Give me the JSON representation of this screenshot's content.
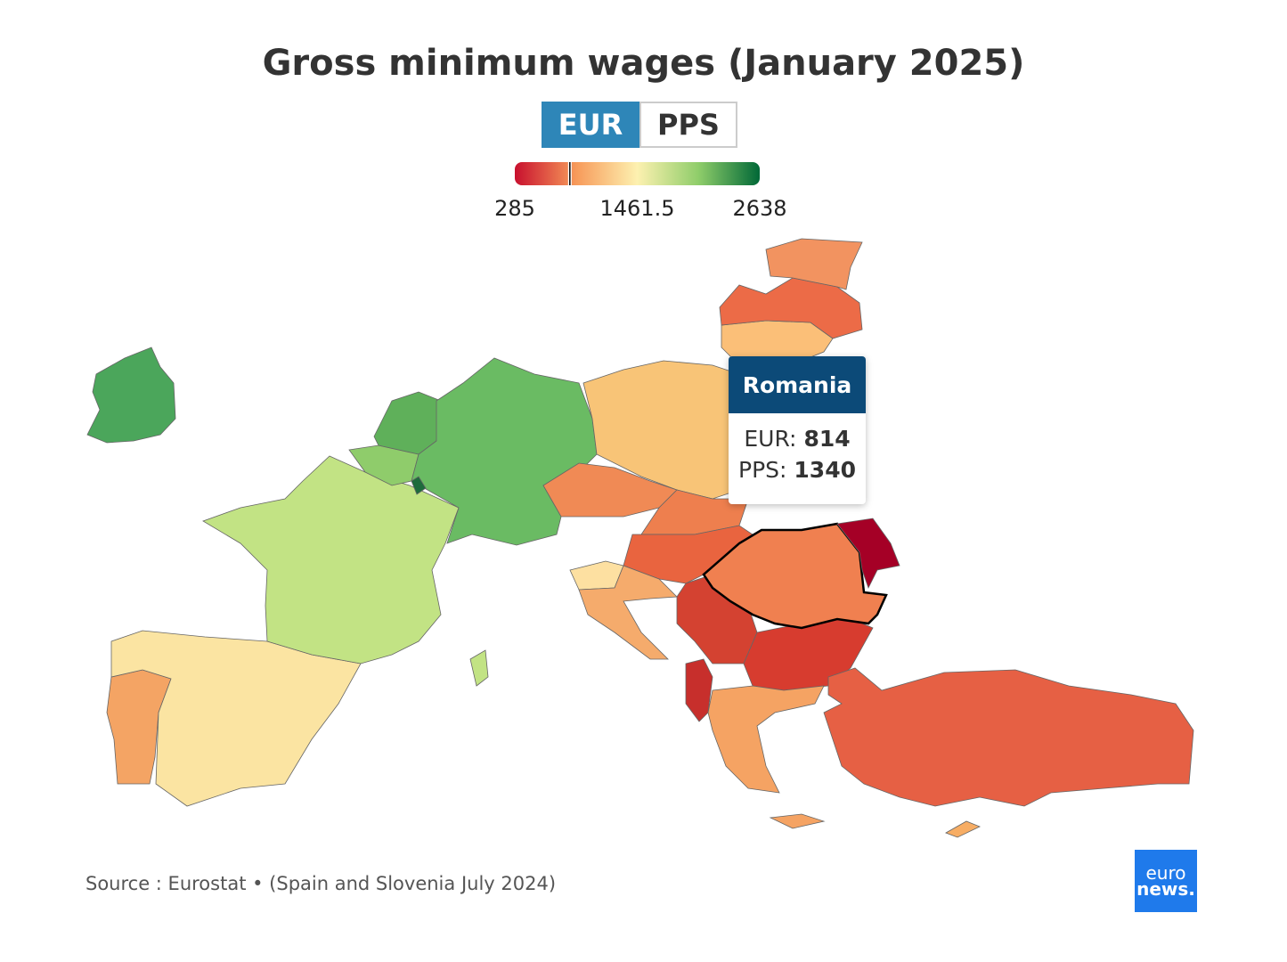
{
  "title": "Gross minimum wages (January 2025)",
  "toggle": {
    "options": [
      "EUR",
      "PPS"
    ],
    "active": 0
  },
  "legend": {
    "ticks": [
      285,
      1461.5,
      2638
    ]
  },
  "tooltip": {
    "country": "Romania",
    "rows": [
      {
        "label": "EUR:",
        "value": 814
      },
      {
        "label": "PPS:",
        "value": 1340
      }
    ]
  },
  "source": "Source : Eurostat • (Spain and Slovenia July 2024)",
  "logo": {
    "line1": "euro",
    "line2": "news."
  }
}
